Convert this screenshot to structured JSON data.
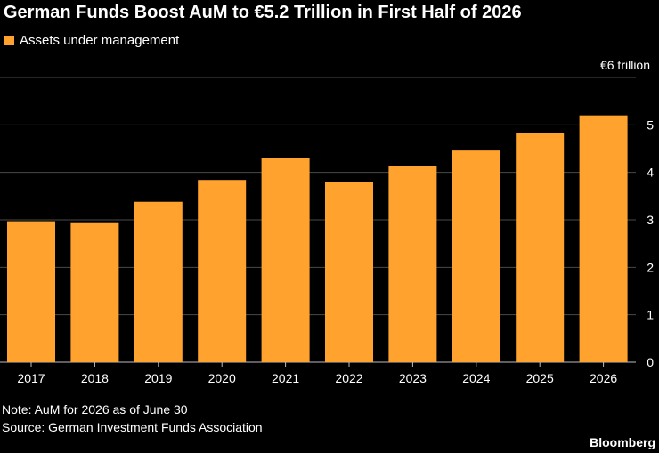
{
  "chart_data": {
    "type": "bar",
    "title": "German Funds Boost AuM to €5.2 Trillion in First Half of 2026",
    "legend": "Assets under management",
    "unit_label": "€6 trillion",
    "categories": [
      "2017",
      "2018",
      "2019",
      "2020",
      "2021",
      "2022",
      "2023",
      "2024",
      "2025",
      "2026"
    ],
    "values": [
      2.97,
      2.93,
      3.38,
      3.84,
      4.3,
      3.79,
      4.14,
      4.46,
      4.83,
      5.2
    ],
    "y_ticks": [
      "0",
      "1",
      "2",
      "3",
      "4",
      "5"
    ],
    "ylim": [
      0,
      6
    ],
    "grid": true,
    "legend_position": "top-left",
    "bar_color": "#ffa22e"
  },
  "footer": {
    "note": "Note: AuM for 2026 as of June 30",
    "source": "Source: German Investment Funds Association",
    "brand": "Bloomberg"
  }
}
